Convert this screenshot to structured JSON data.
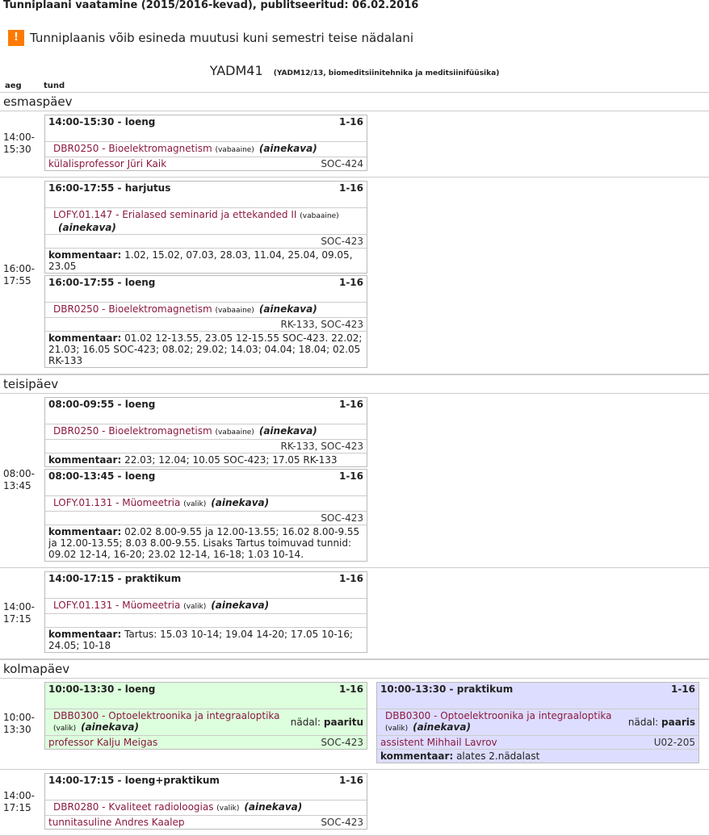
{
  "page_title": "Tunniplaani vaatamine (2015/2016-kevad), publitseeritud: 06.02.2016",
  "warning": {
    "icon": "warning-icon",
    "text": "Tunniplaanis võib esineda muutusi kuni semestri teise nädalani"
  },
  "group": {
    "code": "YADM41",
    "desc": "(YADM12/13, biomeditsiinitehnika ja meditsiinifüüsika)"
  },
  "columns": {
    "time": "aeg",
    "lesson": "tund"
  },
  "labels": {
    "comment": "kommentaar:",
    "week": "nädal:"
  },
  "colors": {
    "link": "#8b1a40",
    "green": "#ddffdd",
    "blue": "#ddddff"
  },
  "days": [
    {
      "name": "esmaspäev",
      "slots": [
        {
          "time": "14:00-\n15:30",
          "events": [
            [
              {
                "time": "14:00-15:30 -",
                "type": "loeng",
                "weeks": "1-16",
                "code": "DBR0250",
                "name": "Bioelektromagnetism",
                "kind": "(vabaaine)",
                "plan": "(ainekava)",
                "teacher": "külalisprofessor Jüri Kaik",
                "room": "SOC-424"
              }
            ]
          ]
        },
        {
          "time": "16:00-\n17:55",
          "events": [
            [
              {
                "time": "16:00-17:55 -",
                "type": "harjutus",
                "weeks": "1-16",
                "code": "LOFY.01.147",
                "name": "Erialased seminarid ja ettekanded II",
                "kind": "(vabaaine)",
                "plan": "(ainekava)",
                "teacher": "",
                "room": "SOC-423",
                "comment": "1.02, 15.02, 07.03, 28.03, 11.04, 25.04, 09.05, 23.05"
              },
              {
                "time": "16:00-17:55 -",
                "type": "loeng",
                "weeks": "1-16",
                "code": "DBR0250",
                "name": "Bioelektromagnetism",
                "kind": "(vabaaine)",
                "plan": "(ainekava)",
                "teacher": "",
                "room": "RK-133,  SOC-423",
                "comment": "01.02 12-13.55, 23.05 12-15.55 SOC-423. 22.02; 21.03; 16.05 SOC-423; 08.02; 29.02; 14.03; 04.04; 18.04; 02.05 RK-133"
              }
            ]
          ]
        }
      ]
    },
    {
      "name": "teisipäev",
      "slots": [
        {
          "time": "08:00-\n13:45",
          "events": [
            [
              {
                "time": "08:00-09:55 -",
                "type": "loeng",
                "weeks": "1-16",
                "code": "DBR0250",
                "name": "Bioelektromagnetism",
                "kind": "(vabaaine)",
                "plan": "(ainekava)",
                "teacher": "",
                "room": "RK-133,  SOC-423",
                "comment": "22.03; 12.04; 10.05 SOC-423; 17.05 RK-133"
              },
              {
                "time": "08:00-13:45 -",
                "type": "loeng",
                "weeks": "1-16",
                "code": "LOFY.01.131",
                "name": "Müomeetria",
                "kind": "(valik)",
                "plan": "(ainekava)",
                "teacher": "",
                "room": "SOC-423",
                "comment": "02.02 8.00-9.55 ja 12.00-13.55; 16.02 8.00-9.55 ja 12.00-13.55; 8.03 8.00-9.55. Lisaks Tartus toimuvad tunnid: 09.02 12-14, 16-20; 23.02 12-14, 16-18; 1.03 10-14."
              }
            ]
          ]
        },
        {
          "time": "14:00-\n17:15",
          "events": [
            [
              {
                "time": "14:00-17:15 -",
                "type": "praktikum",
                "weeks": "1-16",
                "code": "LOFY.01.131",
                "name": "Müomeetria",
                "kind": "(valik)",
                "plan": "(ainekava)",
                "teacher": "",
                "room": "",
                "comment": "Tartus: 15.03 10-14; 19.04 14-20; 17.05 10-16; 24.05; 10-18"
              }
            ]
          ]
        }
      ]
    },
    {
      "name": "kolmapäev",
      "slots": [
        {
          "time": "10:00-\n13:30",
          "events": [
            [
              {
                "time": "10:00-13:30 -",
                "type": "loeng",
                "weeks": "1-16",
                "code": "DBB0300",
                "name": "Optoelektroonika ja integraaloptika",
                "kind": "(valik)",
                "plan": "(ainekava)",
                "week": "paaritu",
                "teacher": "professor Kalju Meigas",
                "room": "SOC-423",
                "bg": "#ddffdd"
              }
            ],
            [
              {
                "time": "10:00-13:30 -",
                "type": "praktikum",
                "weeks": "1-16",
                "code": "DBB0300",
                "name": "Optoelektroonika ja integraaloptika",
                "kind": "(valik)",
                "plan": "(ainekava)",
                "week": "paaris",
                "teacher": "assistent Mihhail Lavrov",
                "room": "U02-205",
                "comment": "alates 2.nädalast",
                "bg": "#ddddff"
              }
            ]
          ]
        },
        {
          "time": "14:00-\n17:15",
          "events": [
            [
              {
                "time": "14:00-17:15 -",
                "type": "loeng+praktikum",
                "weeks": "1-16",
                "code": "DBR0280",
                "name": "Kvaliteet radioloogias",
                "kind": "(valik)",
                "plan": "(ainekava)",
                "teacher": "tunnitasuline Andres Kaalep",
                "room": "SOC-423"
              }
            ]
          ]
        }
      ]
    }
  ]
}
